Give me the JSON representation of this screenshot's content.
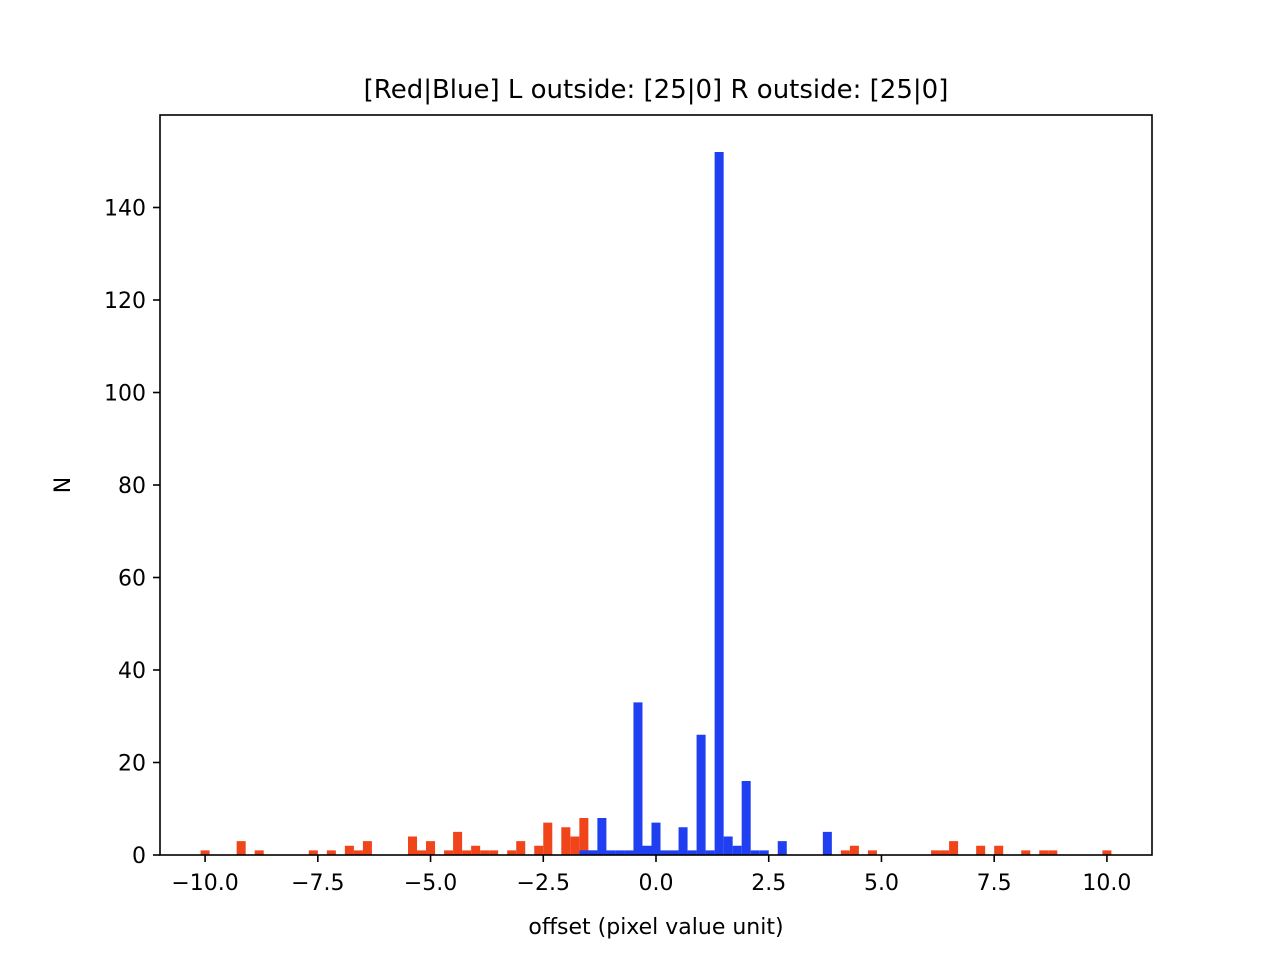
{
  "chart_data": {
    "type": "bar",
    "title": "[Red|Blue] L outside: [25|0] R outside: [25|0]",
    "xlabel": "offset (pixel value unit)",
    "ylabel": "N",
    "xlim": [
      -11,
      11
    ],
    "ylim": [
      0,
      160
    ],
    "xticks": [
      -10.0,
      -7.5,
      -5.0,
      -2.5,
      0.0,
      2.5,
      5.0,
      7.5,
      10.0
    ],
    "xtick_labels": [
      "−10.0",
      "−7.5",
      "−5.0",
      "−2.5",
      "0.0",
      "2.5",
      "5.0",
      "7.5",
      "10.0"
    ],
    "yticks": [
      0,
      20,
      40,
      60,
      80,
      100,
      120,
      140
    ],
    "ytick_labels": [
      "0",
      "20",
      "40",
      "60",
      "80",
      "100",
      "120",
      "140"
    ],
    "grid": false,
    "legend": "none",
    "series": [
      {
        "color": "#f0441a",
        "bin_width": 0.2,
        "bins": [
          [
            -10.0,
            1
          ],
          [
            -9.2,
            3
          ],
          [
            -8.8,
            1
          ],
          [
            -7.6,
            1
          ],
          [
            -7.2,
            1
          ],
          [
            -6.8,
            2
          ],
          [
            -6.6,
            1
          ],
          [
            -6.4,
            3
          ],
          [
            -5.4,
            4
          ],
          [
            -5.2,
            1
          ],
          [
            -5.0,
            3
          ],
          [
            -4.6,
            1
          ],
          [
            -4.4,
            5
          ],
          [
            -4.2,
            1
          ],
          [
            -4.0,
            2
          ],
          [
            -3.8,
            1
          ],
          [
            -3.6,
            1
          ],
          [
            -3.2,
            1
          ],
          [
            -3.0,
            3
          ],
          [
            -2.6,
            2
          ],
          [
            -2.4,
            7
          ],
          [
            -2.0,
            6
          ],
          [
            -1.8,
            4
          ],
          [
            -1.6,
            8
          ],
          [
            -1.4,
            1
          ],
          [
            -1.2,
            1
          ],
          [
            4.2,
            1
          ],
          [
            4.4,
            2
          ],
          [
            4.8,
            1
          ],
          [
            6.2,
            1
          ],
          [
            6.4,
            1
          ],
          [
            6.6,
            3
          ],
          [
            7.2,
            2
          ],
          [
            7.6,
            2
          ],
          [
            8.2,
            1
          ],
          [
            8.6,
            1
          ],
          [
            8.8,
            1
          ],
          [
            10.0,
            1
          ]
        ]
      },
      {
        "color": "#1f3ff0",
        "bin_width": 0.2,
        "bins": [
          [
            -1.6,
            1
          ],
          [
            -1.4,
            1
          ],
          [
            -1.2,
            8
          ],
          [
            -1.0,
            1
          ],
          [
            -0.8,
            1
          ],
          [
            -0.6,
            1
          ],
          [
            -0.4,
            33
          ],
          [
            -0.2,
            2
          ],
          [
            0.0,
            7
          ],
          [
            0.2,
            1
          ],
          [
            0.4,
            1
          ],
          [
            0.6,
            6
          ],
          [
            0.8,
            1
          ],
          [
            1.0,
            26
          ],
          [
            1.2,
            1
          ],
          [
            1.4,
            152
          ],
          [
            1.6,
            4
          ],
          [
            1.8,
            2
          ],
          [
            2.0,
            16
          ],
          [
            2.2,
            1
          ],
          [
            2.4,
            1
          ],
          [
            2.8,
            3
          ],
          [
            3.8,
            5
          ]
        ]
      }
    ]
  }
}
